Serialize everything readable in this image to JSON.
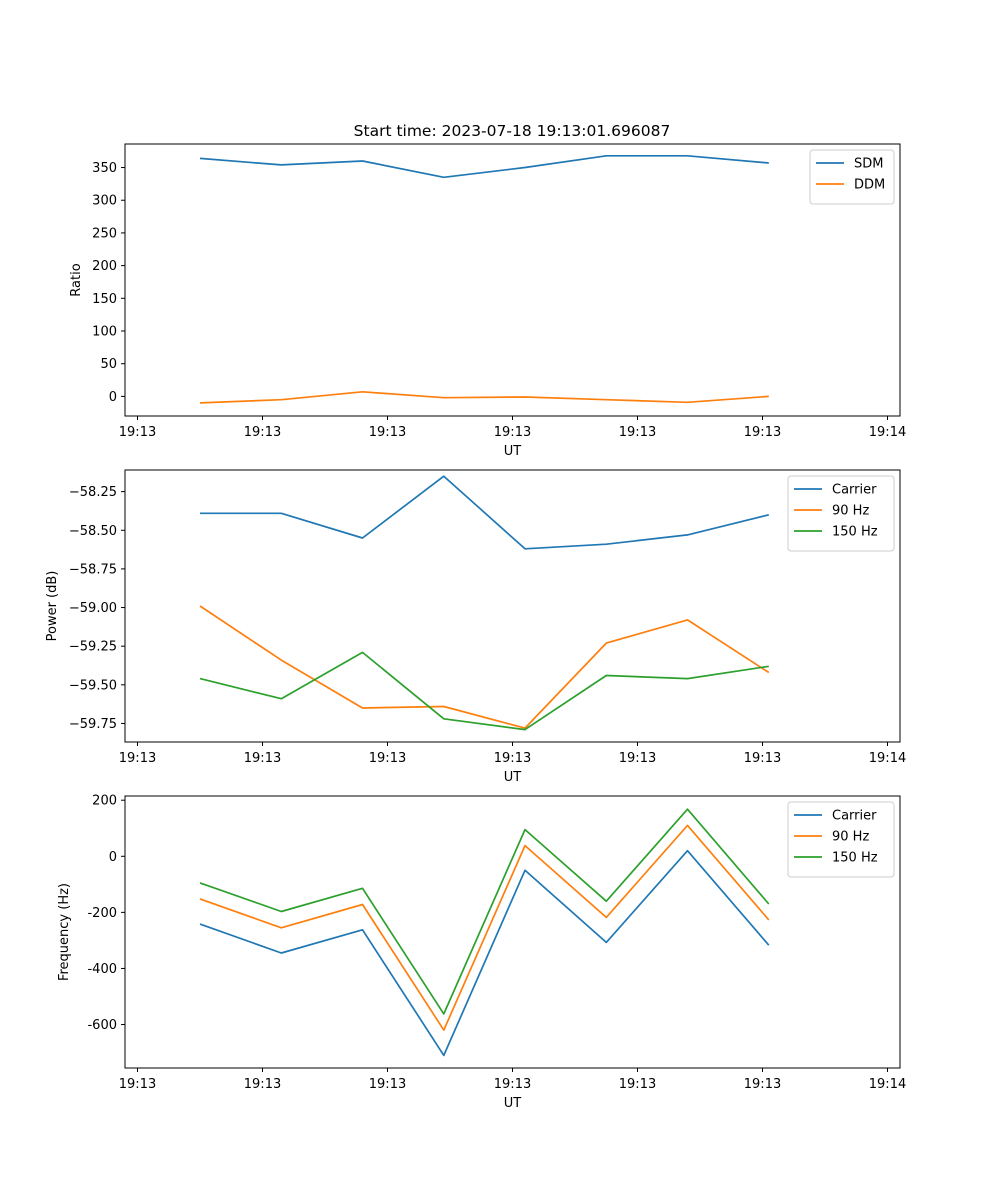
{
  "figure_title": "Start time: 2023-07-18 19:13:01.696087",
  "colors": {
    "blue": "#1f77b4",
    "orange": "#ff7f0e",
    "green": "#2ca02c"
  },
  "chart_data": [
    {
      "type": "line",
      "xlabel": "UT",
      "ylabel": "Ratio",
      "xticks": [
        0,
        1,
        2,
        3,
        4,
        5,
        6
      ],
      "xtick_labels": [
        "19:13",
        "19:13",
        "19:13",
        "19:13",
        "19:13",
        "19:13",
        "19:14"
      ],
      "xlim": [
        -0.1,
        6.1
      ],
      "x": [
        0.5,
        1.15,
        1.8,
        2.45,
        3.1,
        3.75,
        4.4,
        5.05
      ],
      "yticks": [
        0,
        50,
        100,
        150,
        200,
        250,
        300,
        350
      ],
      "ylim": [
        -30,
        386
      ],
      "legend": "top-right",
      "series": [
        {
          "name": "SDM",
          "color": "blue",
          "values": [
            364,
            354,
            360,
            335,
            350,
            368,
            368,
            357
          ]
        },
        {
          "name": "DDM",
          "color": "orange",
          "values": [
            -10,
            -5,
            7,
            -2,
            -1,
            -5,
            -9,
            0
          ]
        }
      ]
    },
    {
      "type": "line",
      "xlabel": "UT",
      "ylabel": "Power (dB)",
      "xticks": [
        0,
        1,
        2,
        3,
        4,
        5,
        6
      ],
      "xtick_labels": [
        "19:13",
        "19:13",
        "19:13",
        "19:13",
        "19:13",
        "19:13",
        "19:14"
      ],
      "xlim": [
        -0.1,
        6.1
      ],
      "x": [
        0.5,
        1.15,
        1.8,
        2.45,
        3.1,
        3.75,
        4.4,
        5.05
      ],
      "yticks": [
        -59.75,
        -59.5,
        -59.25,
        -59.0,
        -58.75,
        -58.5,
        -58.25
      ],
      "ytick_labels": [
        "−59.75",
        "−59.50",
        "−59.25",
        "−59.00",
        "−58.75",
        "−58.50",
        "−58.25"
      ],
      "ylim": [
        -59.87,
        -58.11
      ],
      "legend": "top-right",
      "series": [
        {
          "name": "Carrier",
          "color": "blue",
          "values": [
            -58.39,
            -58.39,
            -58.55,
            -58.15,
            -58.62,
            -58.59,
            -58.53,
            -58.4
          ]
        },
        {
          "name": "90 Hz",
          "color": "orange",
          "values": [
            -58.99,
            -59.34,
            -59.65,
            -59.64,
            -59.78,
            -59.23,
            -59.08,
            -59.42
          ]
        },
        {
          "name": "150 Hz",
          "color": "green",
          "values": [
            -59.46,
            -59.59,
            -59.29,
            -59.72,
            -59.79,
            -59.44,
            -59.46,
            -59.38
          ]
        }
      ]
    },
    {
      "type": "line",
      "xlabel": "UT",
      "ylabel": "Frequency (Hz)",
      "xticks": [
        0,
        1,
        2,
        3,
        4,
        5,
        6
      ],
      "xtick_labels": [
        "19:13",
        "19:13",
        "19:13",
        "19:13",
        "19:13",
        "19:13",
        "19:14"
      ],
      "xlim": [
        -0.1,
        6.1
      ],
      "x": [
        0.5,
        1.15,
        1.8,
        2.45,
        3.1,
        3.75,
        4.4,
        5.05
      ],
      "yticks": [
        -600,
        -400,
        -200,
        0,
        200
      ],
      "ylim": [
        -755,
        215
      ],
      "legend": "top-right",
      "series": [
        {
          "name": "Carrier",
          "color": "blue",
          "values": [
            -242,
            -345,
            -262,
            -710,
            -50,
            -307,
            20,
            -317
          ]
        },
        {
          "name": "90 Hz",
          "color": "orange",
          "values": [
            -152,
            -255,
            -172,
            -620,
            38,
            -218,
            110,
            -227
          ]
        },
        {
          "name": "150 Hz",
          "color": "green",
          "values": [
            -95,
            -197,
            -114,
            -562,
            95,
            -160,
            168,
            -170
          ]
        }
      ]
    }
  ]
}
